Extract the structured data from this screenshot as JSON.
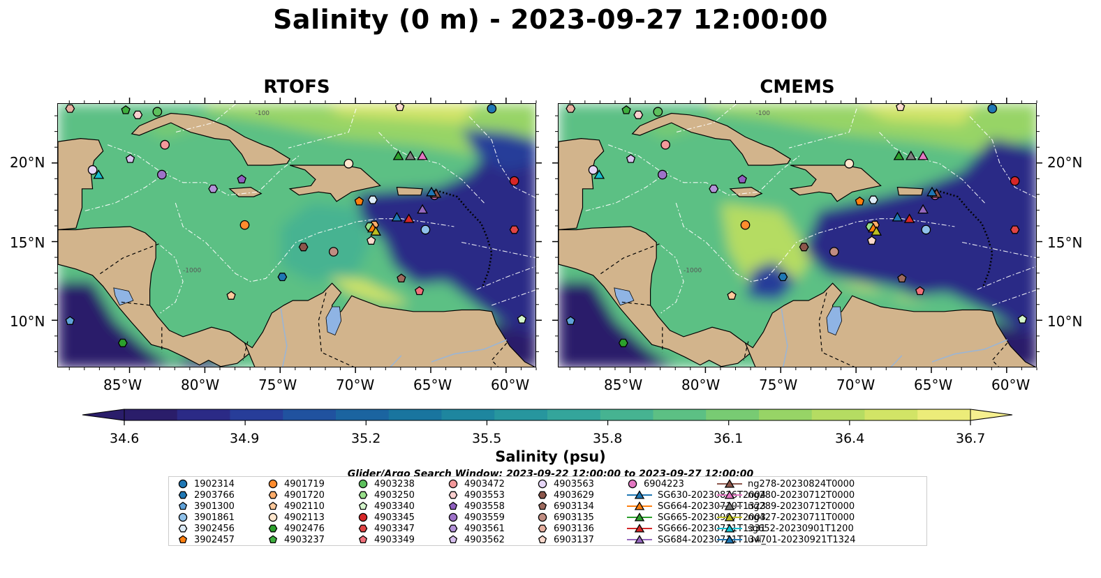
{
  "title": "Salinity (0 m) - 2023-09-27 12:00:00",
  "panels": [
    {
      "title": "RTOFS"
    },
    {
      "title": "CMEMS"
    }
  ],
  "lon_ticks": [
    "85°W",
    "80°W",
    "75°W",
    "70°W",
    "65°W",
    "60°W"
  ],
  "lat_ticks": [
    "20°N",
    "15°N",
    "10°N"
  ],
  "bathy_labels": [
    "-100",
    "-1000"
  ],
  "colorbar": {
    "label": "Salinity (psu)",
    "ticks": [
      "34.6",
      "34.9",
      "35.2",
      "35.5",
      "35.8",
      "36.1",
      "36.4",
      "36.7"
    ],
    "colors": [
      "#2a1d6a",
      "#2b2a86",
      "#273d99",
      "#20529f",
      "#1b64a0",
      "#19759f",
      "#1e869f",
      "#27969e",
      "#34a59b",
      "#46b391",
      "#5cc084",
      "#78cb73",
      "#97d466",
      "#b5dc62",
      "#d2e466",
      "#ecec79"
    ]
  },
  "search_window": "Glider/Argo Search Window: 2023-09-22 12:00:00 to 2023-09-27 12:00:00",
  "legend": [
    {
      "label": "1902314",
      "shape": "circle",
      "color": "#1f77b4"
    },
    {
      "label": "2903766",
      "shape": "hexagon",
      "color": "#1f77b4"
    },
    {
      "label": "3901300",
      "shape": "pentagon",
      "color": "#5fa2d9"
    },
    {
      "label": "3901861",
      "shape": "circle",
      "color": "#8fc1ea"
    },
    {
      "label": "3902456",
      "shape": "hexagon",
      "color": "#dcebf7"
    },
    {
      "label": "3902457",
      "shape": "pentagon",
      "color": "#ff7f0e"
    },
    {
      "label": "4901719",
      "shape": "circle",
      "color": "#ff8c2e"
    },
    {
      "label": "4901720",
      "shape": "hexagon",
      "color": "#ffac6a"
    },
    {
      "label": "4902110",
      "shape": "pentagon",
      "color": "#ffc99b"
    },
    {
      "label": "4902113",
      "shape": "circle",
      "color": "#ffe6cd"
    },
    {
      "label": "4902476",
      "shape": "hexagon",
      "color": "#2ca02c"
    },
    {
      "label": "4903237",
      "shape": "pentagon",
      "color": "#3fae3f"
    },
    {
      "label": "4903238",
      "shape": "circle",
      "color": "#5dc05d"
    },
    {
      "label": "4903250",
      "shape": "hexagon",
      "color": "#98df8a"
    },
    {
      "label": "4903340",
      "shape": "pentagon",
      "color": "#d4f5cc"
    },
    {
      "label": "4903345",
      "shape": "circle",
      "color": "#d62728"
    },
    {
      "label": "4903347",
      "shape": "hexagon",
      "color": "#e04444"
    },
    {
      "label": "4903349",
      "shape": "pentagon",
      "color": "#f0707a"
    },
    {
      "label": "4903472",
      "shape": "circle",
      "color": "#f4999b"
    },
    {
      "label": "4903553",
      "shape": "hexagon",
      "color": "#fbcfcf"
    },
    {
      "label": "4903558",
      "shape": "pentagon",
      "color": "#8f5fbf"
    },
    {
      "label": "4903559",
      "shape": "circle",
      "color": "#9e72c9"
    },
    {
      "label": "4903561",
      "shape": "hexagon",
      "color": "#b393d9"
    },
    {
      "label": "4903562",
      "shape": "pentagon",
      "color": "#d7c0ee"
    },
    {
      "label": "4903563",
      "shape": "circle",
      "color": "#e6d6f7"
    },
    {
      "label": "4903629",
      "shape": "hexagon",
      "color": "#8c564b"
    },
    {
      "label": "6903134",
      "shape": "pentagon",
      "color": "#9d6a5e"
    },
    {
      "label": "6903135",
      "shape": "circle",
      "color": "#c08d82"
    },
    {
      "label": "6903136",
      "shape": "hexagon",
      "color": "#e6b0a0"
    },
    {
      "label": "6903137",
      "shape": "pentagon",
      "color": "#fad9cc"
    },
    {
      "label": "6904223",
      "shape": "circle",
      "color": "#e377c2"
    },
    {
      "label": "SG630-20230826T2004",
      "shape": "triangle-line",
      "color": "#1f77b4"
    },
    {
      "label": "SG664-20230719T1323",
      "shape": "triangle-line",
      "color": "#ff7f0e"
    },
    {
      "label": "SG665-20230907T2003",
      "shape": "triangle-line",
      "color": "#2ca02c"
    },
    {
      "label": "SG666-20230711T1331",
      "shape": "triangle-line",
      "color": "#d62728"
    },
    {
      "label": "SG684-20230711T1347",
      "shape": "triangle-line",
      "color": "#9467bd"
    },
    {
      "label": "ng278-20230824T0000",
      "shape": "triangle-line",
      "color": "#8c564b"
    },
    {
      "label": "ng280-20230712T0000",
      "shape": "triangle-line",
      "color": "#e377c2"
    },
    {
      "label": "ng289-20230712T0000",
      "shape": "triangle-line",
      "color": "#7f7f7f"
    },
    {
      "label": "ng427-20230711T0000",
      "shape": "triangle-line",
      "color": "#bcbd22"
    },
    {
      "label": "sg652-20230901T1200",
      "shape": "triangle-line",
      "color": "#17becf"
    },
    {
      "label": "uvi_01-20230921T1324",
      "shape": "triangle-line",
      "color": "#1f77b4"
    }
  ],
  "markers": [
    {
      "id": "1902314",
      "shape": "circle",
      "color": "#1f77b4",
      "lon": -61.0,
      "lat": 23.5
    },
    {
      "id": "2903766",
      "shape": "hexagon",
      "color": "#1f77b4",
      "lon": -74.9,
      "lat": 12.8
    },
    {
      "id": "3901300",
      "shape": "pentagon",
      "color": "#5fa2d9",
      "lon": -89.0,
      "lat": 10.0
    },
    {
      "id": "3901861",
      "shape": "circle",
      "color": "#8fc1ea",
      "lon": -65.4,
      "lat": 15.8
    },
    {
      "id": "3902456",
      "shape": "hexagon",
      "color": "#dcebf7",
      "lon": -68.9,
      "lat": 17.7
    },
    {
      "id": "3902457",
      "shape": "pentagon",
      "color": "#ff7f0e",
      "lon": -69.8,
      "lat": 17.6
    },
    {
      "id": "4901719",
      "shape": "circle",
      "color": "#ff8c2e",
      "lon": -77.4,
      "lat": 16.1
    },
    {
      "id": "4901720",
      "shape": "hexagon",
      "color": "#ffac6a",
      "lon": -68.8,
      "lat": 16.1
    },
    {
      "id": "4902110",
      "shape": "pentagon",
      "color": "#ffc99b",
      "lon": -78.3,
      "lat": 11.6
    },
    {
      "id": "4902113",
      "shape": "circle",
      "color": "#ffe6cd",
      "lon": -70.5,
      "lat": 20.0
    },
    {
      "id": "4902476",
      "shape": "hexagon",
      "color": "#2ca02c",
      "lon": -85.5,
      "lat": 8.6
    },
    {
      "id": "4903237",
      "shape": "pentagon",
      "color": "#3fae3f",
      "lon": -85.3,
      "lat": 23.4
    },
    {
      "id": "4903238",
      "shape": "circle",
      "color": "#5dc05d",
      "lon": -83.2,
      "lat": 23.3
    },
    {
      "id": "4903250",
      "shape": "hexagon",
      "color": "#98df8a",
      "lon": -69.1,
      "lat": 16.0
    },
    {
      "id": "4903340",
      "shape": "pentagon",
      "color": "#d4f5cc",
      "lon": -59.0,
      "lat": 10.1
    },
    {
      "id": "4903345",
      "shape": "circle",
      "color": "#d62728",
      "lon": -59.5,
      "lat": 18.9
    },
    {
      "id": "4903347",
      "shape": "hexagon",
      "color": "#e04444",
      "lon": -59.5,
      "lat": 15.8
    },
    {
      "id": "4903349",
      "shape": "pentagon",
      "color": "#f0707a",
      "lon": -65.8,
      "lat": 11.9
    },
    {
      "id": "4903472",
      "shape": "circle",
      "color": "#f4999b",
      "lon": -82.7,
      "lat": 21.2
    },
    {
      "id": "4903553",
      "shape": "hexagon",
      "color": "#fbcfcf",
      "lon": -84.5,
      "lat": 23.1
    },
    {
      "id": "4903558",
      "shape": "pentagon",
      "color": "#8f5fbf",
      "lon": -77.6,
      "lat": 19.0
    },
    {
      "id": "4903559",
      "shape": "circle",
      "color": "#9e72c9",
      "lon": -82.9,
      "lat": 19.3
    },
    {
      "id": "4903561",
      "shape": "hexagon",
      "color": "#b393d9",
      "lon": -79.5,
      "lat": 18.4
    },
    {
      "id": "4903562",
      "shape": "pentagon",
      "color": "#d7c0ee",
      "lon": -85.0,
      "lat": 20.3
    },
    {
      "id": "4903563",
      "shape": "circle",
      "color": "#e6d6f7",
      "lon": -87.5,
      "lat": 19.6
    },
    {
      "id": "4903629",
      "shape": "hexagon",
      "color": "#8c564b",
      "lon": -73.5,
      "lat": 14.7
    },
    {
      "id": "6903134",
      "shape": "pentagon",
      "color": "#9d6a5e",
      "lon": -67.0,
      "lat": 12.7
    },
    {
      "id": "6903135",
      "shape": "circle",
      "color": "#c08d82",
      "lon": -71.5,
      "lat": 14.4
    },
    {
      "id": "6903136",
      "shape": "hexagon",
      "color": "#e6b0a0",
      "lon": -89.0,
      "lat": 23.5
    },
    {
      "id": "6903137",
      "shape": "pentagon",
      "color": "#fad9cc",
      "lon": -69.0,
      "lat": 15.1
    },
    {
      "id": "6904223",
      "shape": "circle",
      "color": "#e377c2",
      "lon": -64.8,
      "lat": 18.0
    },
    {
      "id": "SG630-20230826T2004",
      "shape": "triangle",
      "color": "#1f77b4",
      "lon": -67.3,
      "lat": 16.6
    },
    {
      "id": "SG664-20230719T1323",
      "shape": "triangle",
      "color": "#ff7f0e",
      "lon": -68.9,
      "lat": 15.9
    },
    {
      "id": "SG665-20230907T2003",
      "shape": "triangle",
      "color": "#2ca02c",
      "lon": -67.2,
      "lat": 20.5
    },
    {
      "id": "SG666-20230711T1331",
      "shape": "triangle",
      "color": "#d62728",
      "lon": -66.5,
      "lat": 16.5
    },
    {
      "id": "SG684-20230711T1347",
      "shape": "triangle",
      "color": "#9467bd",
      "lon": -65.6,
      "lat": 17.1
    },
    {
      "id": "ng278-20230824T0000",
      "shape": "triangle",
      "color": "#8c564b",
      "lon": -64.7,
      "lat": 18.1
    },
    {
      "id": "ng280-20230712T0000",
      "shape": "triangle",
      "color": "#e377c2",
      "lon": -65.6,
      "lat": 20.5
    },
    {
      "id": "ng289-20230712T0000",
      "shape": "triangle",
      "color": "#7f7f7f",
      "lon": -66.4,
      "lat": 20.5
    },
    {
      "id": "ng427-20230711T0000",
      "shape": "triangle",
      "color": "#bcbd22",
      "lon": -68.7,
      "lat": 15.7
    },
    {
      "id": "sg652-20230901T1200",
      "shape": "triangle",
      "color": "#17becf",
      "lon": -87.1,
      "lat": 19.3
    },
    {
      "id": "uvi_01-20230921T1324",
      "shape": "triangle",
      "color": "#1f77b4",
      "lon": -65.0,
      "lat": 18.2
    },
    {
      "id": "6903137-n",
      "shape": "pentagon",
      "color": "#fad9cc",
      "lon": -67.1,
      "lat": 23.6
    }
  ]
}
